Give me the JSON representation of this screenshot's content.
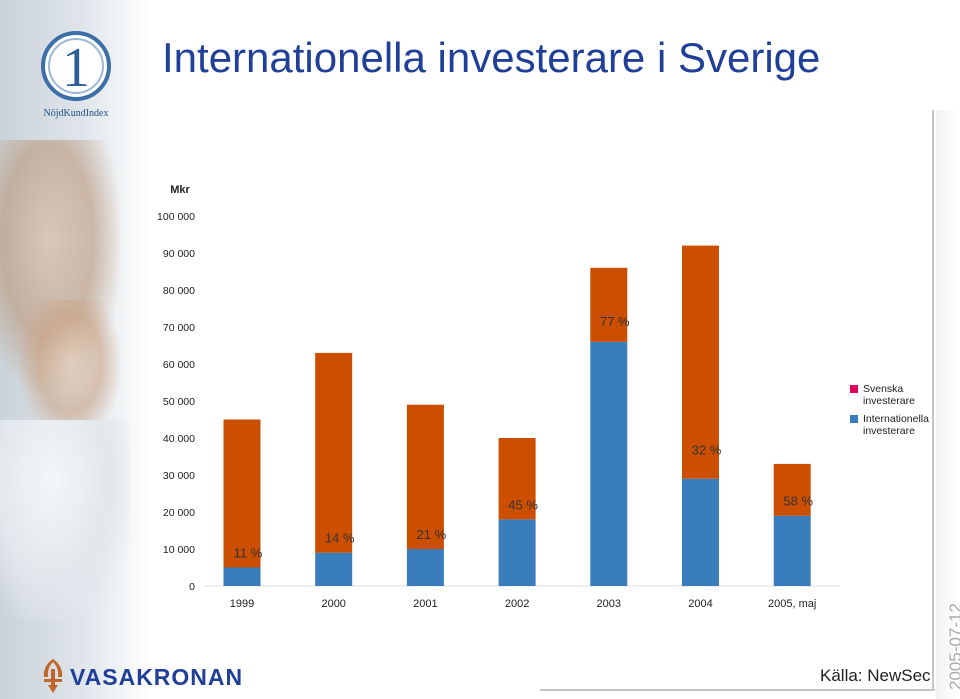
{
  "page": {
    "title": "Internationella investerare i Sverige",
    "source": "Källa: NewSec",
    "date": "2005-07-12",
    "brand": "VASAKRONAN",
    "logo_text": "NöjdKundIndex",
    "logo_numeral": "1"
  },
  "colors": {
    "title": "#1f3f99",
    "svenska": "#cc4e00",
    "internationella": "#3a7dbd",
    "legend_svenska_swatch": "#e0005a"
  },
  "chart_data": {
    "type": "bar",
    "stacked": true,
    "ylabel": "Mkr",
    "ylim": [
      0,
      100000
    ],
    "yticks": [
      "0",
      "10 000",
      "20 000",
      "30 000",
      "40 000",
      "50 000",
      "60 000",
      "70 000",
      "80 000",
      "90 000",
      "100 000"
    ],
    "categories": [
      "1999",
      "2000",
      "2001",
      "2002",
      "2003",
      "2004",
      "2005, maj"
    ],
    "series": [
      {
        "name": "Internationella investerare",
        "values": [
          5000,
          9000,
          10000,
          18000,
          66000,
          29000,
          19000
        ]
      },
      {
        "name": "Svenska investerare",
        "values": [
          40000,
          54000,
          39000,
          22000,
          20000,
          63000,
          14000
        ]
      }
    ],
    "share_labels": [
      "11 %",
      "14 %",
      "21 %",
      "45 %",
      "77 %",
      "32 %",
      "58 %"
    ],
    "legend": [
      {
        "label": "Svenska investerare"
      },
      {
        "label": "Internationella investerare"
      }
    ],
    "legend_position": "right",
    "grid": false
  }
}
